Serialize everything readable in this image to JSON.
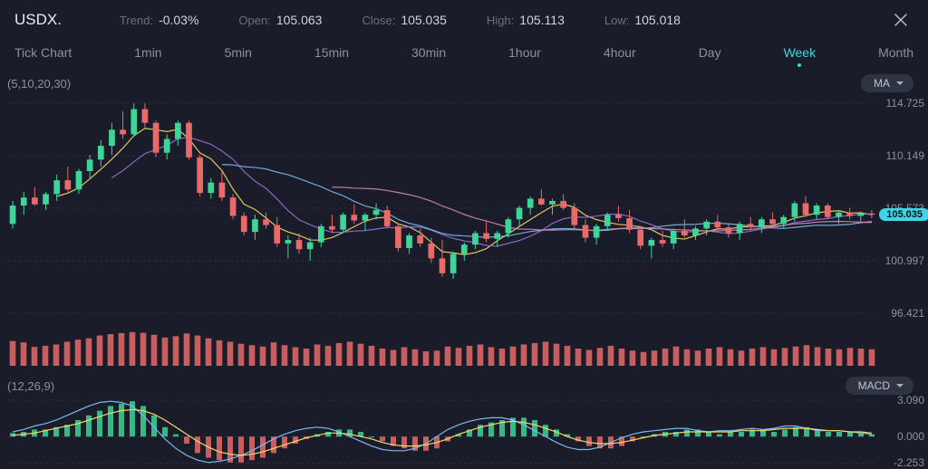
{
  "symbol": "USDX.",
  "stats": {
    "trend_label": "Trend:",
    "trend_value": "-0.03%",
    "open_label": "Open:",
    "open_value": "105.063",
    "close_label": "Close:",
    "close_value": "105.035",
    "high_label": "High:",
    "high_value": "105.113",
    "low_label": "Low:",
    "low_value": "105.018"
  },
  "timeframes": [
    "Tick Chart",
    "1min",
    "5min",
    "15min",
    "30min",
    "1hour",
    "4hour",
    "Day",
    "Week",
    "Month"
  ],
  "active_timeframe": "Week",
  "ma": {
    "params_label": "(5,10,20,30)",
    "pill_label": "MA",
    "line_colors": [
      "#f5d96a",
      "#9a6fd4",
      "#7bb8f0",
      "#d48bb8"
    ]
  },
  "price_chart": {
    "ylim": [
      95.0,
      115.5
    ],
    "yticks": [
      114.725,
      110.149,
      105.573,
      100.997,
      96.421
    ],
    "last_price": 105.035,
    "last_price_label": "105.035",
    "candle_up_color": "#3dd598",
    "candle_down_color": "#e86a6a",
    "wick_color": "#8b90a0",
    "grid_color": "#2a2e3a",
    "candles": [
      {
        "o": 104.2,
        "h": 106.2,
        "l": 103.8,
        "c": 105.8
      },
      {
        "o": 105.8,
        "h": 107.0,
        "l": 105.0,
        "c": 106.5
      },
      {
        "o": 106.5,
        "h": 107.4,
        "l": 105.8,
        "c": 105.9
      },
      {
        "o": 105.9,
        "h": 107.0,
        "l": 105.4,
        "c": 106.8
      },
      {
        "o": 106.8,
        "h": 108.5,
        "l": 106.2,
        "c": 108.0
      },
      {
        "o": 108.0,
        "h": 109.2,
        "l": 107.0,
        "c": 107.2
      },
      {
        "o": 107.2,
        "h": 109.0,
        "l": 106.8,
        "c": 108.8
      },
      {
        "o": 108.8,
        "h": 110.2,
        "l": 108.2,
        "c": 109.8
      },
      {
        "o": 109.8,
        "h": 111.5,
        "l": 109.2,
        "c": 111.0
      },
      {
        "o": 111.0,
        "h": 113.0,
        "l": 110.2,
        "c": 112.4
      },
      {
        "o": 112.4,
        "h": 114.0,
        "l": 111.6,
        "c": 112.0
      },
      {
        "o": 112.0,
        "h": 114.7,
        "l": 111.8,
        "c": 114.2
      },
      {
        "o": 114.2,
        "h": 114.7,
        "l": 112.6,
        "c": 113.0
      },
      {
        "o": 113.0,
        "h": 113.2,
        "l": 110.0,
        "c": 110.4
      },
      {
        "o": 110.4,
        "h": 112.0,
        "l": 109.8,
        "c": 111.6
      },
      {
        "o": 111.6,
        "h": 113.2,
        "l": 111.0,
        "c": 113.0
      },
      {
        "o": 113.0,
        "h": 113.2,
        "l": 109.8,
        "c": 110.0
      },
      {
        "o": 110.0,
        "h": 110.2,
        "l": 106.6,
        "c": 106.9
      },
      {
        "o": 106.9,
        "h": 108.2,
        "l": 106.4,
        "c": 107.8
      },
      {
        "o": 107.8,
        "h": 108.8,
        "l": 106.2,
        "c": 106.5
      },
      {
        "o": 106.5,
        "h": 106.8,
        "l": 104.6,
        "c": 104.9
      },
      {
        "o": 104.9,
        "h": 105.2,
        "l": 103.2,
        "c": 103.5
      },
      {
        "o": 103.5,
        "h": 105.0,
        "l": 102.8,
        "c": 104.6
      },
      {
        "o": 104.6,
        "h": 105.2,
        "l": 103.8,
        "c": 104.1
      },
      {
        "o": 104.1,
        "h": 104.8,
        "l": 102.2,
        "c": 102.5
      },
      {
        "o": 102.5,
        "h": 103.2,
        "l": 101.2,
        "c": 102.8
      },
      {
        "o": 102.8,
        "h": 103.4,
        "l": 101.6,
        "c": 102.0
      },
      {
        "o": 102.0,
        "h": 103.0,
        "l": 101.0,
        "c": 102.6
      },
      {
        "o": 102.6,
        "h": 104.2,
        "l": 102.2,
        "c": 104.0
      },
      {
        "o": 104.0,
        "h": 105.0,
        "l": 103.4,
        "c": 103.7
      },
      {
        "o": 103.7,
        "h": 105.2,
        "l": 103.4,
        "c": 105.0
      },
      {
        "o": 105.0,
        "h": 105.9,
        "l": 104.2,
        "c": 104.5
      },
      {
        "o": 104.5,
        "h": 105.2,
        "l": 103.6,
        "c": 105.0
      },
      {
        "o": 105.0,
        "h": 106.0,
        "l": 104.6,
        "c": 105.4
      },
      {
        "o": 105.4,
        "h": 105.8,
        "l": 103.8,
        "c": 104.0
      },
      {
        "o": 104.0,
        "h": 104.2,
        "l": 101.8,
        "c": 102.1
      },
      {
        "o": 102.1,
        "h": 103.4,
        "l": 101.6,
        "c": 103.2
      },
      {
        "o": 103.2,
        "h": 103.8,
        "l": 102.2,
        "c": 102.5
      },
      {
        "o": 102.5,
        "h": 103.0,
        "l": 100.8,
        "c": 101.2
      },
      {
        "o": 101.2,
        "h": 102.8,
        "l": 99.6,
        "c": 99.9
      },
      {
        "o": 99.9,
        "h": 101.8,
        "l": 99.4,
        "c": 101.6
      },
      {
        "o": 101.6,
        "h": 102.6,
        "l": 101.0,
        "c": 102.4
      },
      {
        "o": 102.4,
        "h": 103.6,
        "l": 102.0,
        "c": 103.4
      },
      {
        "o": 103.4,
        "h": 104.4,
        "l": 102.6,
        "c": 102.9
      },
      {
        "o": 102.9,
        "h": 103.6,
        "l": 102.2,
        "c": 103.4
      },
      {
        "o": 103.4,
        "h": 104.8,
        "l": 103.0,
        "c": 104.6
      },
      {
        "o": 104.6,
        "h": 105.8,
        "l": 104.0,
        "c": 105.6
      },
      {
        "o": 105.6,
        "h": 106.6,
        "l": 105.0,
        "c": 106.4
      },
      {
        "o": 106.4,
        "h": 107.2,
        "l": 105.8,
        "c": 105.9
      },
      {
        "o": 105.9,
        "h": 106.4,
        "l": 105.0,
        "c": 106.2
      },
      {
        "o": 106.2,
        "h": 106.8,
        "l": 105.4,
        "c": 105.6
      },
      {
        "o": 105.6,
        "h": 106.0,
        "l": 103.8,
        "c": 104.1
      },
      {
        "o": 104.1,
        "h": 104.6,
        "l": 102.6,
        "c": 103.0
      },
      {
        "o": 103.0,
        "h": 104.2,
        "l": 102.4,
        "c": 104.0
      },
      {
        "o": 104.0,
        "h": 105.2,
        "l": 103.6,
        "c": 105.0
      },
      {
        "o": 105.0,
        "h": 105.8,
        "l": 104.4,
        "c": 104.7
      },
      {
        "o": 104.7,
        "h": 105.4,
        "l": 103.4,
        "c": 103.7
      },
      {
        "o": 103.7,
        "h": 104.0,
        "l": 102.0,
        "c": 102.3
      },
      {
        "o": 102.3,
        "h": 103.0,
        "l": 101.2,
        "c": 102.8
      },
      {
        "o": 102.8,
        "h": 103.6,
        "l": 102.2,
        "c": 102.5
      },
      {
        "o": 102.5,
        "h": 103.8,
        "l": 102.0,
        "c": 103.6
      },
      {
        "o": 103.6,
        "h": 104.6,
        "l": 103.0,
        "c": 103.2
      },
      {
        "o": 103.2,
        "h": 104.0,
        "l": 102.8,
        "c": 103.8
      },
      {
        "o": 103.8,
        "h": 104.6,
        "l": 103.2,
        "c": 104.4
      },
      {
        "o": 104.4,
        "h": 105.0,
        "l": 103.6,
        "c": 103.9
      },
      {
        "o": 103.9,
        "h": 104.2,
        "l": 103.0,
        "c": 103.4
      },
      {
        "o": 103.4,
        "h": 104.4,
        "l": 102.8,
        "c": 104.2
      },
      {
        "o": 104.2,
        "h": 104.8,
        "l": 103.6,
        "c": 103.9
      },
      {
        "o": 103.9,
        "h": 104.8,
        "l": 103.4,
        "c": 104.6
      },
      {
        "o": 104.6,
        "h": 105.2,
        "l": 104.0,
        "c": 104.2
      },
      {
        "o": 104.2,
        "h": 105.0,
        "l": 103.8,
        "c": 104.8
      },
      {
        "o": 104.8,
        "h": 106.2,
        "l": 104.4,
        "c": 106.0
      },
      {
        "o": 106.0,
        "h": 106.6,
        "l": 104.8,
        "c": 105.0
      },
      {
        "o": 105.0,
        "h": 106.0,
        "l": 104.6,
        "c": 105.8
      },
      {
        "o": 105.8,
        "h": 106.0,
        "l": 104.6,
        "c": 104.8
      },
      {
        "o": 104.8,
        "h": 105.4,
        "l": 104.2,
        "c": 105.2
      },
      {
        "o": 105.2,
        "h": 105.6,
        "l": 104.6,
        "c": 104.9
      },
      {
        "o": 104.9,
        "h": 105.3,
        "l": 104.4,
        "c": 105.1
      },
      {
        "o": 105.1,
        "h": 105.4,
        "l": 104.7,
        "c": 105.0
      }
    ]
  },
  "volume": {
    "color": "#e86a6a",
    "max": 100,
    "values": [
      72,
      68,
      55,
      58,
      62,
      70,
      76,
      80,
      88,
      92,
      95,
      98,
      96,
      90,
      82,
      86,
      94,
      88,
      80,
      74,
      70,
      64,
      60,
      56,
      68,
      60,
      54,
      50,
      62,
      58,
      66,
      70,
      64,
      58,
      50,
      46,
      54,
      48,
      42,
      44,
      56,
      52,
      58,
      62,
      54,
      50,
      56,
      62,
      66,
      70,
      64,
      58,
      50,
      46,
      52,
      58,
      50,
      44,
      40,
      44,
      50,
      56,
      48,
      44,
      50,
      54,
      48,
      44,
      50,
      54,
      48,
      52,
      56,
      60,
      54,
      50,
      48,
      52,
      50,
      48
    ]
  },
  "macd": {
    "params_label": "(12,26,9)",
    "pill_label": "MACD",
    "ylim": [
      -2.6,
      3.4
    ],
    "yticks": [
      3.09,
      0.0,
      -2.253
    ],
    "hist_up_color": "#3dd598",
    "hist_down_color": "#e86a6a",
    "macd_line_color": "#7bb8f0",
    "signal_line_color": "#f5d96a",
    "hist": [
      0.3,
      0.4,
      0.6,
      0.6,
      0.8,
      1.0,
      1.4,
      1.8,
      2.2,
      2.6,
      2.8,
      3.0,
      2.6,
      1.8,
      0.8,
      0.2,
      -0.6,
      -1.4,
      -1.8,
      -2.0,
      -2.2,
      -2.2,
      -2.0,
      -1.8,
      -1.4,
      -1.0,
      -0.6,
      -0.2,
      0.2,
      0.4,
      0.6,
      0.6,
      0.4,
      0.0,
      -0.4,
      -0.8,
      -1.0,
      -1.2,
      -1.2,
      -1.0,
      -0.4,
      0.2,
      0.6,
      1.0,
      1.2,
      1.4,
      1.6,
      1.6,
      1.4,
      1.0,
      0.6,
      0.2,
      -0.4,
      -0.8,
      -1.0,
      -1.0,
      -0.8,
      -0.4,
      0.0,
      0.2,
      0.4,
      0.4,
      0.6,
      0.6,
      0.4,
      0.2,
      0.4,
      0.4,
      0.6,
      0.6,
      0.4,
      0.6,
      0.8,
      0.8,
      0.6,
      0.4,
      0.4,
      0.4,
      0.3,
      0.2
    ],
    "macd_line": [
      0.4,
      0.6,
      0.9,
      1.1,
      1.4,
      1.8,
      2.2,
      2.6,
      2.9,
      3.0,
      2.9,
      2.6,
      1.8,
      0.8,
      -0.2,
      -1.0,
      -1.6,
      -2.0,
      -2.2,
      -2.1,
      -1.9,
      -1.6,
      -1.2,
      -0.7,
      -0.2,
      0.2,
      0.5,
      0.7,
      0.8,
      0.7,
      0.4,
      0.0,
      -0.4,
      -0.8,
      -1.1,
      -1.2,
      -1.2,
      -1.0,
      -0.6,
      0.0,
      0.6,
      1.0,
      1.3,
      1.5,
      1.6,
      1.6,
      1.4,
      1.0,
      0.5,
      0.0,
      -0.5,
      -0.9,
      -1.1,
      -1.1,
      -0.9,
      -0.5,
      -0.1,
      0.2,
      0.4,
      0.5,
      0.6,
      0.7,
      0.7,
      0.5,
      0.4,
      0.5,
      0.5,
      0.6,
      0.7,
      0.6,
      0.7,
      0.9,
      0.9,
      0.7,
      0.5,
      0.5,
      0.5,
      0.4,
      0.3,
      0.2
    ],
    "signal_line": [
      0.1,
      0.2,
      0.3,
      0.5,
      0.7,
      0.9,
      1.1,
      1.4,
      1.7,
      2.0,
      2.2,
      2.3,
      2.2,
      1.9,
      1.4,
      0.8,
      0.2,
      -0.4,
      -0.9,
      -1.3,
      -1.5,
      -1.6,
      -1.5,
      -1.3,
      -1.0,
      -0.7,
      -0.4,
      -0.1,
      0.1,
      0.3,
      0.3,
      0.2,
      0.0,
      -0.2,
      -0.5,
      -0.7,
      -0.8,
      -0.8,
      -0.7,
      -0.5,
      -0.2,
      0.2,
      0.5,
      0.8,
      1.0,
      1.2,
      1.3,
      1.2,
      1.0,
      0.7,
      0.4,
      0.0,
      -0.3,
      -0.5,
      -0.6,
      -0.6,
      -0.5,
      -0.3,
      -0.1,
      0.1,
      0.2,
      0.3,
      0.4,
      0.4,
      0.4,
      0.4,
      0.4,
      0.5,
      0.5,
      0.5,
      0.6,
      0.7,
      0.7,
      0.7,
      0.6,
      0.5,
      0.5,
      0.4,
      0.4,
      0.3
    ]
  },
  "colors": {
    "bg": "#1a1d29",
    "text_primary": "#e8eaf0",
    "text_muted": "#8b90a0",
    "accent": "#3fd4e8"
  }
}
